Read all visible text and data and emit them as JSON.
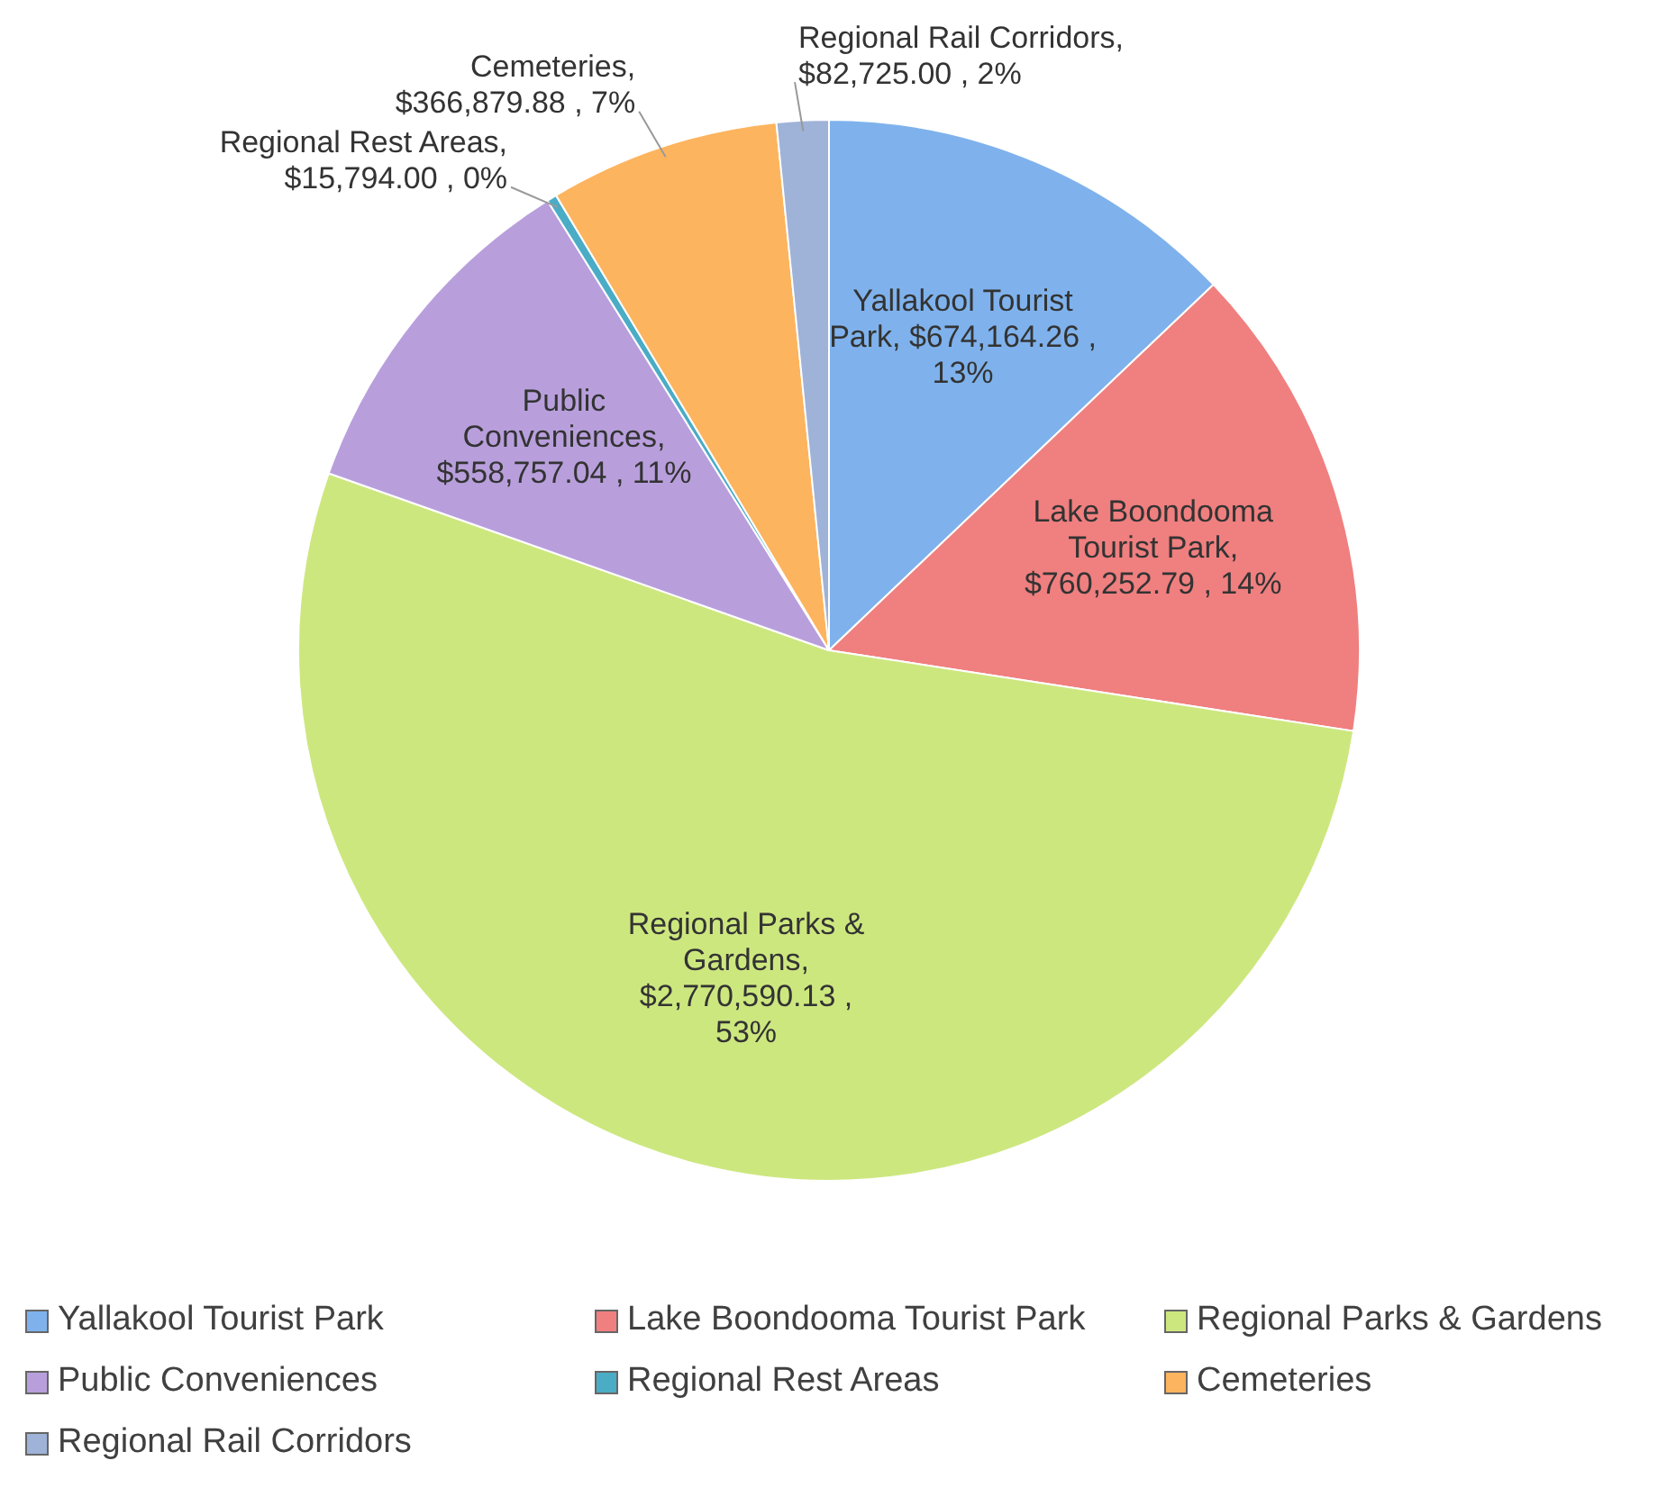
{
  "chart_data": {
    "type": "pie",
    "categories": [
      "Yallakool Tourist Park",
      "Lake Boondooma Tourist Park",
      "Regional Parks & Gardens",
      "Public Conveniences",
      "Regional Rest Areas",
      "Cemeteries",
      "Regional Rail Corridors"
    ],
    "values": [
      674164.26,
      760252.79,
      2770590.13,
      558757.04,
      15794.0,
      366879.88,
      82725.0
    ],
    "value_labels": [
      ", $674,164.26 , 13%",
      ", $760,252.79 , 14%",
      ", $2,770,590.13 , 53%",
      ", $558,757.04 , 11%",
      ", $15,794.00 , 0%",
      ", $366,879.88 , 7%",
      ", $82,725.00 , 2%"
    ],
    "colors": [
      "#7fb2ec",
      "#f07f7f",
      "#cde77f",
      "#b89fdc",
      "#4bacc6",
      "#fdb45e",
      "#9fb2d8"
    ],
    "legend": "bottom"
  }
}
